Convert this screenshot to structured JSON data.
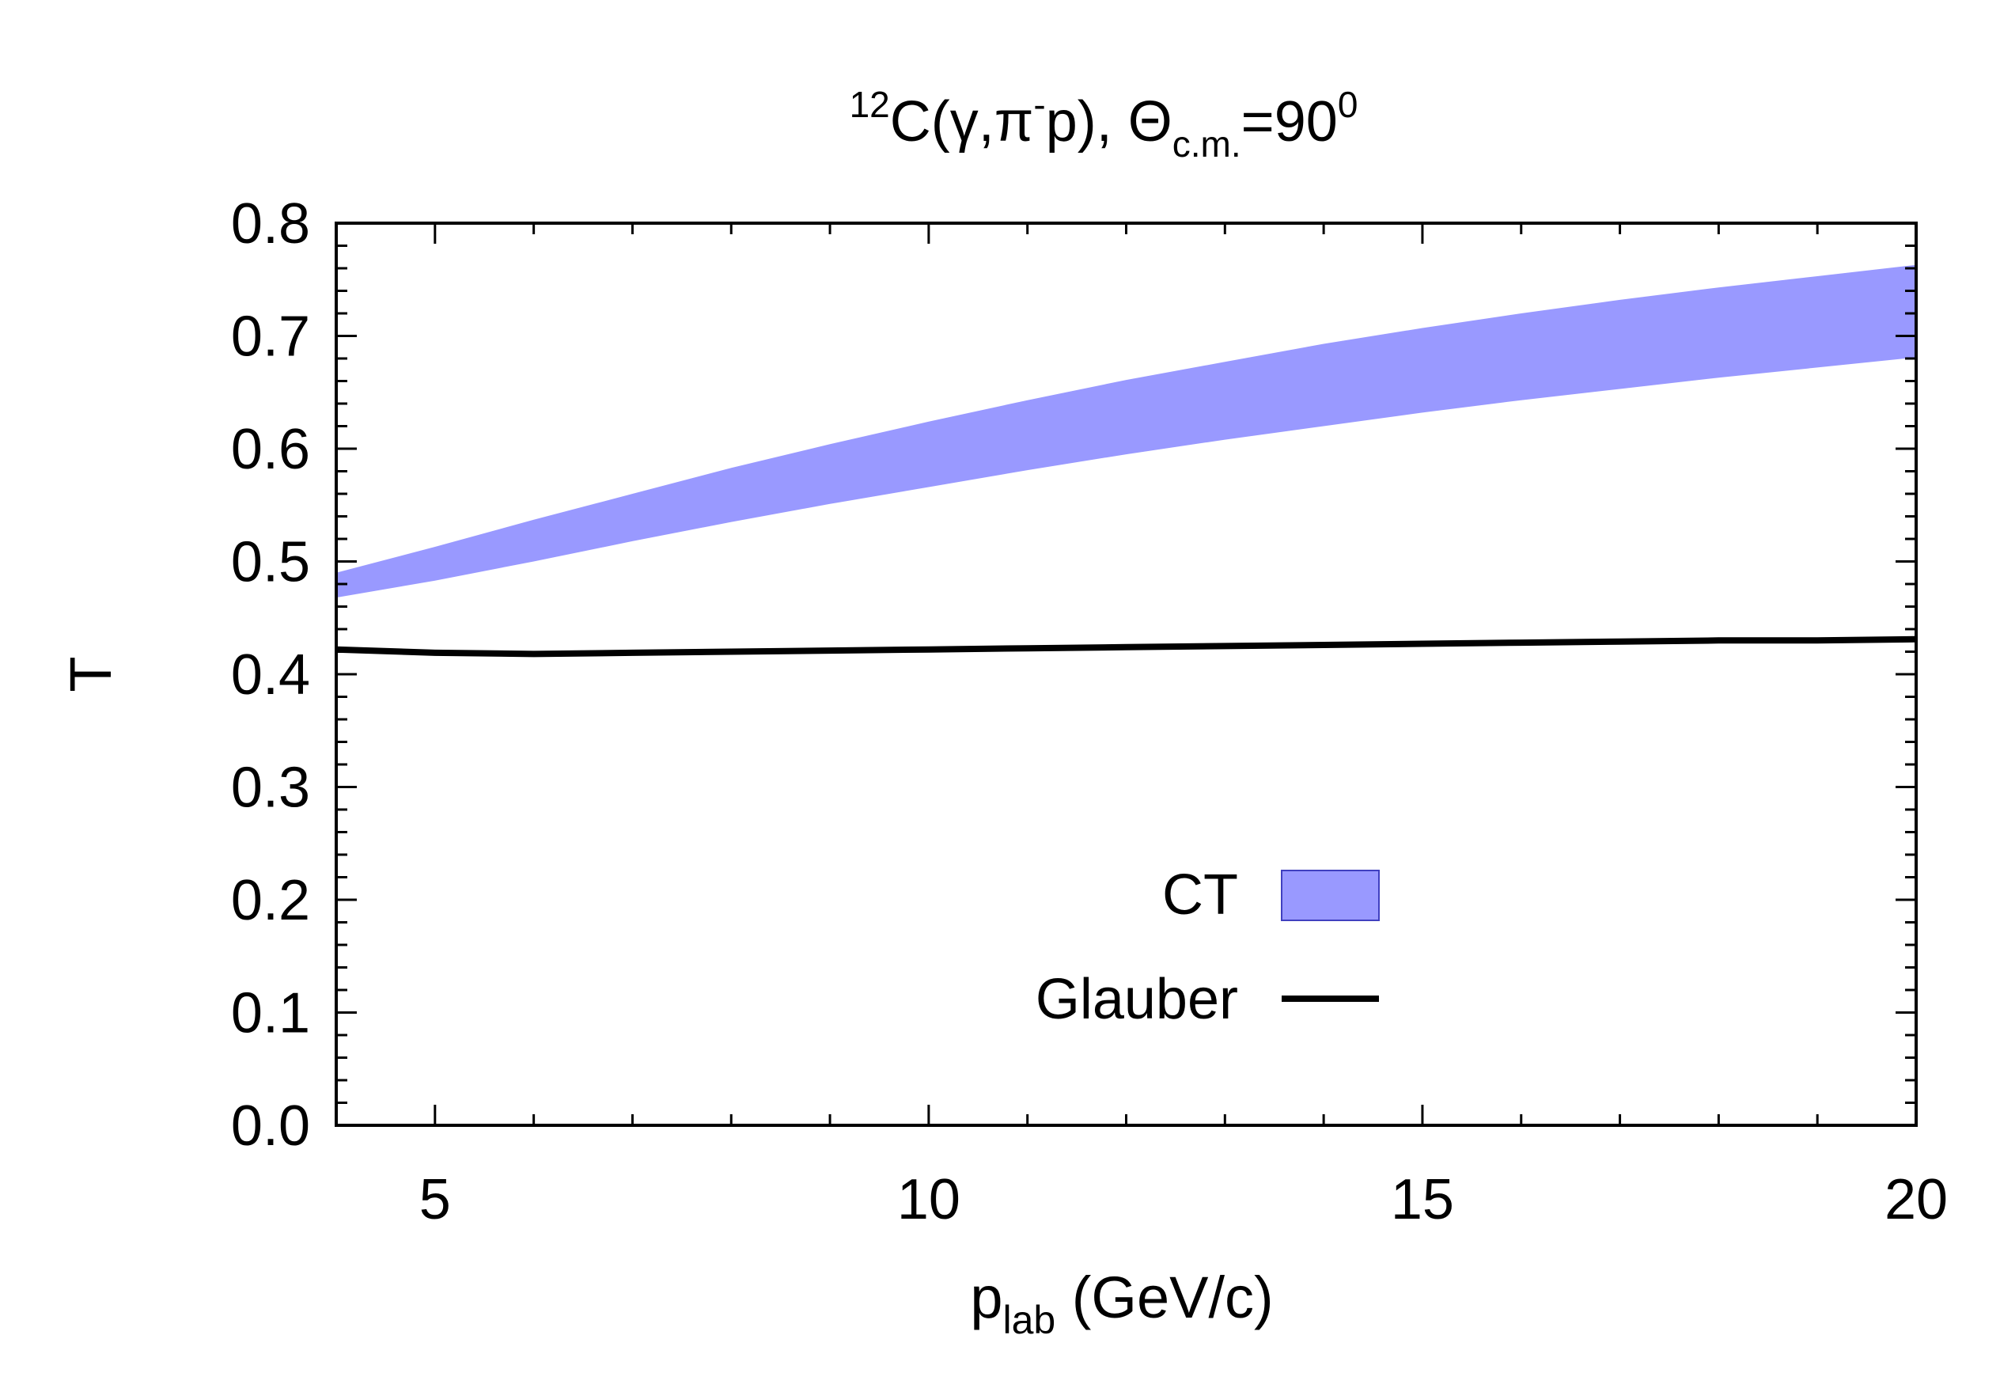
{
  "chart_data": {
    "type": "area",
    "title": {
      "prefix_sup": "12",
      "main": "C(γ,π",
      "pi_sup": "-",
      "after": "p), Θ",
      "sub": "c.m.",
      "after2": "=90",
      "end_sup": "0"
    },
    "xlabel": {
      "main": "p",
      "sub": "lab",
      "rest": " (GeV/c)"
    },
    "ylabel": "T",
    "xlim": [
      4,
      20
    ],
    "ylim": [
      0.0,
      0.8
    ],
    "x_ticks": [
      5,
      10,
      15,
      20
    ],
    "x_tick_labels": [
      "5",
      "10",
      "15",
      "20"
    ],
    "y_ticks": [
      0.0,
      0.1,
      0.2,
      0.3,
      0.4,
      0.5,
      0.6,
      0.7,
      0.8
    ],
    "y_tick_labels": [
      "0.0",
      "0.1",
      "0.2",
      "0.3",
      "0.4",
      "0.5",
      "0.6",
      "0.7",
      "0.8"
    ],
    "grid": false,
    "legend_position": "bottom-center",
    "series": [
      {
        "name": "CT",
        "kind": "band",
        "color": "#9999ff",
        "x": [
          4,
          5,
          6,
          7,
          8,
          9,
          10,
          11,
          12,
          13,
          14,
          15,
          16,
          17,
          18,
          19,
          20
        ],
        "lower": [
          0.468,
          0.483,
          0.5,
          0.518,
          0.535,
          0.551,
          0.566,
          0.581,
          0.595,
          0.608,
          0.62,
          0.632,
          0.643,
          0.653,
          0.663,
          0.672,
          0.681
        ],
        "upper": [
          0.49,
          0.513,
          0.537,
          0.56,
          0.583,
          0.604,
          0.624,
          0.643,
          0.661,
          0.677,
          0.693,
          0.707,
          0.72,
          0.732,
          0.743,
          0.753,
          0.763
        ]
      },
      {
        "name": "Glauber",
        "kind": "line",
        "color": "#000000",
        "x": [
          4,
          5,
          6,
          7,
          8,
          9,
          10,
          11,
          12,
          13,
          14,
          15,
          16,
          17,
          18,
          19,
          20
        ],
        "y": [
          0.422,
          0.419,
          0.418,
          0.419,
          0.42,
          0.421,
          0.422,
          0.423,
          0.424,
          0.425,
          0.426,
          0.427,
          0.428,
          0.429,
          0.43,
          0.43,
          0.431
        ]
      }
    ]
  }
}
